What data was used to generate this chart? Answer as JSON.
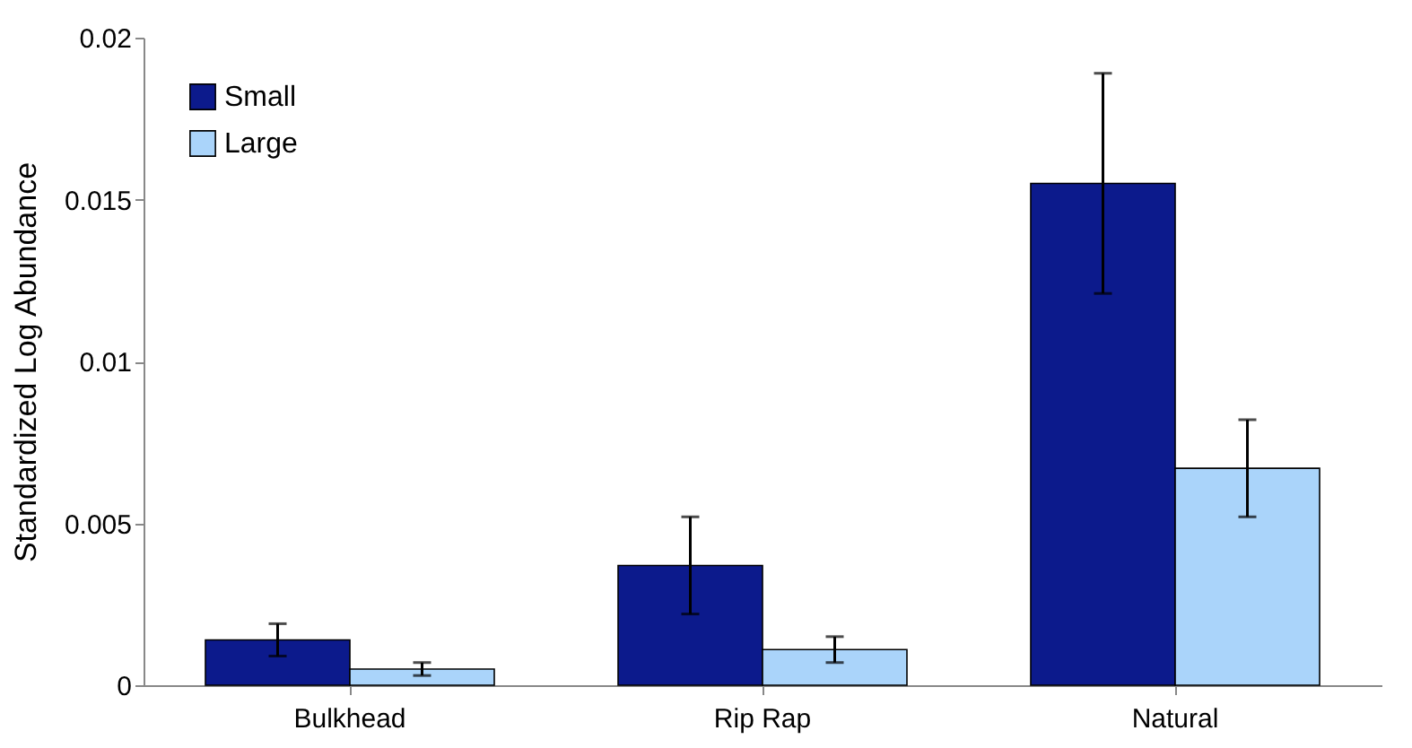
{
  "chart_data": {
    "type": "bar",
    "ylabel": "Standardized Log Abundance",
    "categories": [
      "Bulkhead",
      "Rip Rap",
      "Natural"
    ],
    "series": [
      {
        "name": "Small",
        "color": "#0c1a8c",
        "values": [
          0.0014,
          0.0037,
          0.0155
        ],
        "errors": [
          0.0005,
          0.0015,
          0.0034
        ]
      },
      {
        "name": "Large",
        "color": "#aad4fa",
        "values": [
          0.0005,
          0.0011,
          0.0067
        ],
        "errors": [
          0.0002,
          0.0004,
          0.0015
        ]
      }
    ],
    "ylim": [
      0,
      0.02
    ],
    "yticks": [
      0,
      0.005,
      0.01,
      0.015,
      0.02
    ],
    "grid": false,
    "legend": "top left"
  }
}
